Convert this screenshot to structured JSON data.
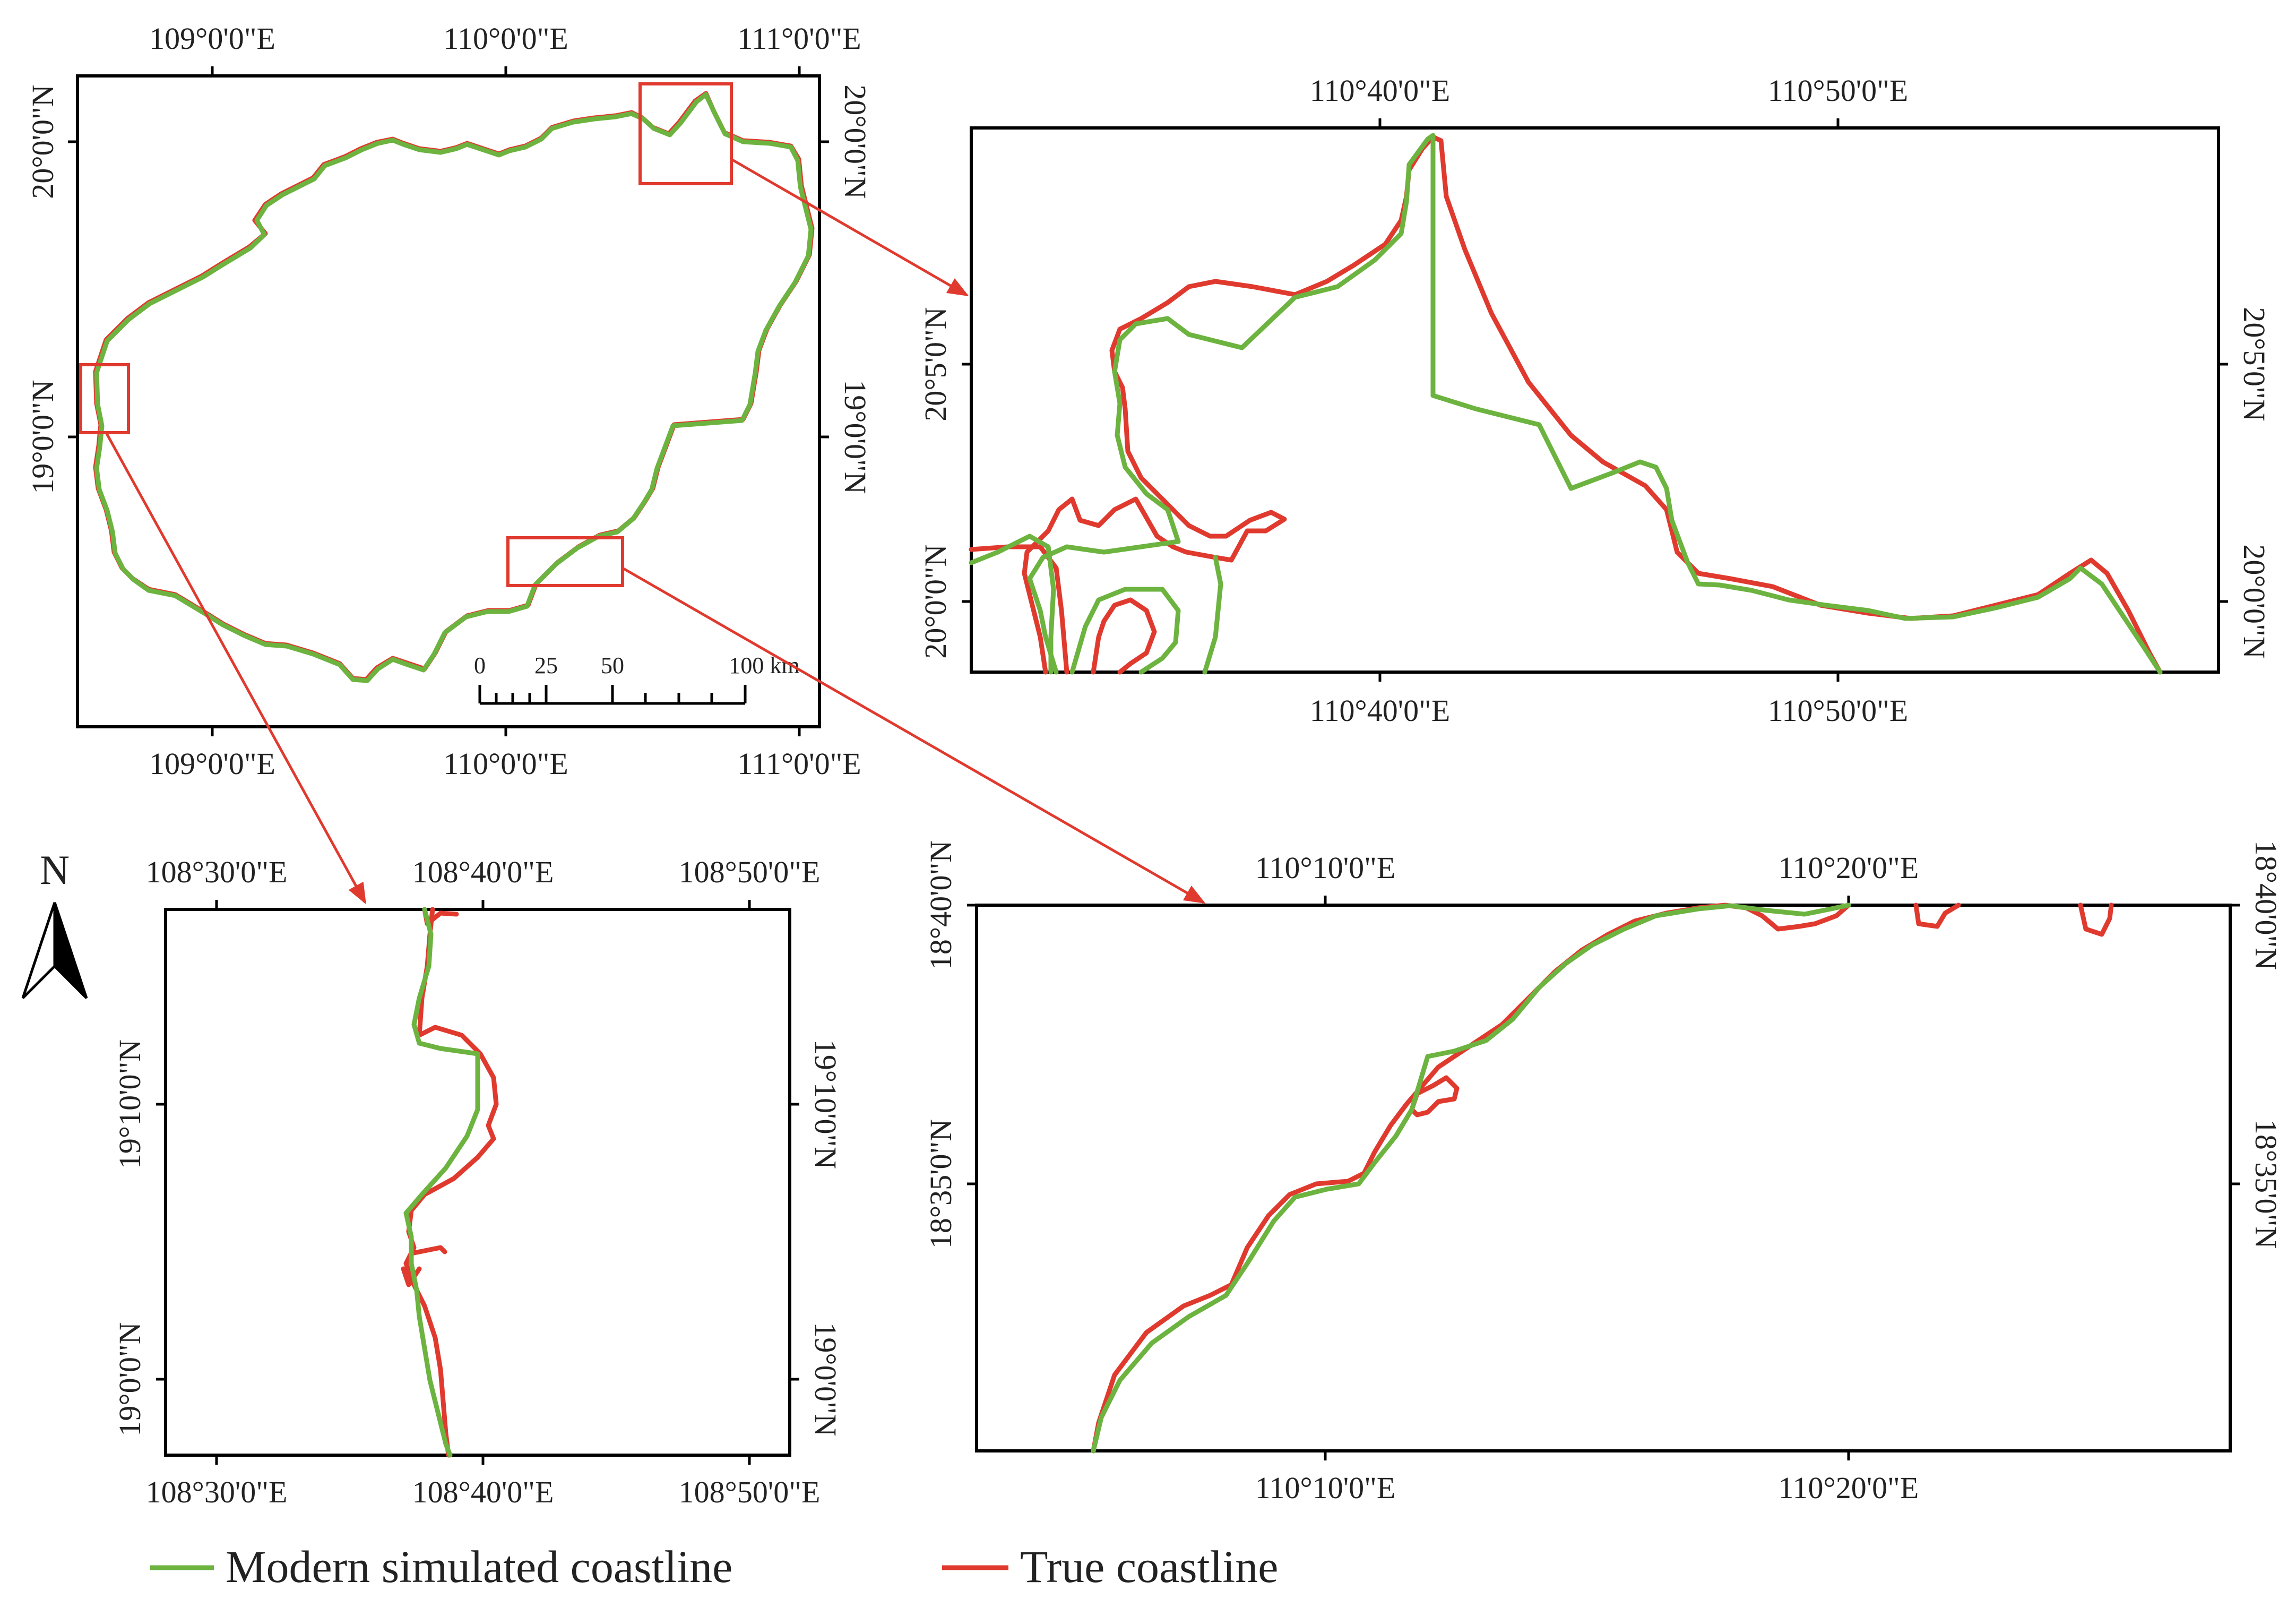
{
  "colors": {
    "modern": "#6cb33f",
    "true": "#e03a2f",
    "frame": "#000000"
  },
  "legend": {
    "modern_label": "Modern simulated coastline",
    "true_label": "True coastline"
  },
  "north_arrow": {
    "label": "N"
  },
  "main_map": {
    "top_lon": [
      "109°0'0\"E",
      "110°0'0\"E",
      "111°0'0\"E"
    ],
    "bottom_lon": [
      "109°0'0\"E",
      "110°0'0\"E",
      "111°0'0\"E"
    ],
    "left_lat": [
      "20°0'0\"N",
      "19°0'0\"N"
    ],
    "right_lat": [
      "20°0'0\"N",
      "19°0'0\"N"
    ],
    "scale_bar": {
      "labels": [
        "0",
        "25",
        "50",
        "100 km"
      ]
    }
  },
  "panel_ne": {
    "top_lon": [
      "110°40'0\"E",
      "110°50'0\"E"
    ],
    "bottom_lon": [
      "110°40'0\"E",
      "110°50'0\"E"
    ],
    "left_lat": [
      "20°5'0\"N",
      "20°0'0\"N"
    ],
    "right_lat": [
      "20°5'0\"N",
      "20°0'0\"N"
    ]
  },
  "panel_w": {
    "top_lon": [
      "108°30'0\"E",
      "108°40'0\"E",
      "108°50'0\"E"
    ],
    "bottom_lon": [
      "108°30'0\"E",
      "108°40'0\"E",
      "108°50'0\"E"
    ],
    "left_lat": [
      "19°10'0\"N",
      "19°0'0\"N"
    ],
    "right_lat": [
      "19°10'0\"N",
      "19°0'0\"N"
    ]
  },
  "panel_s": {
    "top_lon": [
      "110°10'0\"E",
      "110°20'0\"E"
    ],
    "bottom_lon": [
      "110°10'0\"E",
      "110°20'0\"E"
    ],
    "left_lat": [
      "18°40'0\"N",
      "18°35'0\"N"
    ],
    "right_lat": [
      "18°40'0\"N",
      "18°35'0\"N"
    ]
  }
}
